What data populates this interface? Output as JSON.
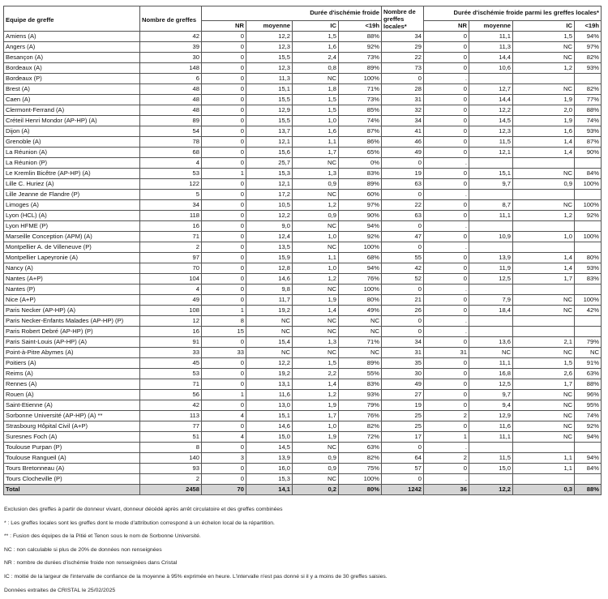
{
  "headers": {
    "team": "Equipe de greffe",
    "count": "Nombre de greffes",
    "group1": "Durée d'ischémie froide",
    "local_count": "Nombre de greffes locales*",
    "group2": "Durée d'ischémie froide parmi les greffes locales*",
    "sub": [
      "NR",
      "moyenne",
      "IC",
      "<19h"
    ]
  },
  "columns": [
    "Equipe de greffe",
    "Nombre de greffes",
    "NR",
    "moyenne",
    "IC",
    "<19h",
    "Nombre de greffes locales*",
    "NR",
    "moyenne",
    "IC",
    "<19h"
  ],
  "rows": [
    [
      "Amiens (A)",
      "42",
      "0",
      "12,2",
      "1,5",
      "88%",
      "34",
      "0",
      "11,1",
      "1,5",
      "94%"
    ],
    [
      "Angers (A)",
      "39",
      "0",
      "12,3",
      "1,6",
      "92%",
      "29",
      "0",
      "11,3",
      "NC",
      "97%"
    ],
    [
      "Besançon (A)",
      "30",
      "0",
      "15,5",
      "2,4",
      "73%",
      "22",
      "0",
      "14,4",
      "NC",
      "82%"
    ],
    [
      "Bordeaux (A)",
      "148",
      "0",
      "12,3",
      "0,8",
      "89%",
      "73",
      "0",
      "10,6",
      "1,2",
      "93%"
    ],
    [
      "Bordeaux (P)",
      "6",
      "0",
      "11,3",
      "NC",
      "100%",
      "0",
      ".",
      "",
      "",
      ""
    ],
    [
      "Brest (A)",
      "48",
      "0",
      "15,1",
      "1,8",
      "71%",
      "28",
      "0",
      "12,7",
      "NC",
      "82%"
    ],
    [
      "Caen (A)",
      "48",
      "0",
      "15,5",
      "1,5",
      "73%",
      "31",
      "0",
      "14,4",
      "1,9",
      "77%"
    ],
    [
      "Clermont-Ferrand (A)",
      "48",
      "0",
      "12,9",
      "1,5",
      "85%",
      "32",
      "0",
      "12,2",
      "2,0",
      "88%"
    ],
    [
      "Créteil Henri Mondor (AP-HP) (A)",
      "89",
      "0",
      "15,5",
      "1,0",
      "74%",
      "34",
      "0",
      "14,5",
      "1,9",
      "74%"
    ],
    [
      "Dijon (A)",
      "54",
      "0",
      "13,7",
      "1,6",
      "87%",
      "41",
      "0",
      "12,3",
      "1,6",
      "93%"
    ],
    [
      "Grenoble (A)",
      "78",
      "0",
      "12,1",
      "1,1",
      "86%",
      "46",
      "0",
      "11,5",
      "1,4",
      "87%"
    ],
    [
      "La Réunion (A)",
      "68",
      "0",
      "15,6",
      "1,7",
      "65%",
      "49",
      "0",
      "12,1",
      "1,4",
      "90%"
    ],
    [
      "La Réunion (P)",
      "4",
      "0",
      "25,7",
      "NC",
      "0%",
      "0",
      ".",
      "",
      "",
      ""
    ],
    [
      "Le Kremlin Bicêtre (AP-HP) (A)",
      "53",
      "1",
      "15,3",
      "1,3",
      "83%",
      "19",
      "0",
      "15,1",
      "NC",
      "84%"
    ],
    [
      "Lille C. Huriez (A)",
      "122",
      "0",
      "12,1",
      "0,9",
      "89%",
      "63",
      "0",
      "9,7",
      "0,9",
      "100%"
    ],
    [
      "Lille Jeanne de Flandre (P)",
      "5",
      "0",
      "17,2",
      "NC",
      "60%",
      "0",
      ".",
      "",
      "",
      ""
    ],
    [
      "Limoges (A)",
      "34",
      "0",
      "10,5",
      "1,2",
      "97%",
      "22",
      "0",
      "8,7",
      "NC",
      "100%"
    ],
    [
      "Lyon (HCL) (A)",
      "118",
      "0",
      "12,2",
      "0,9",
      "90%",
      "63",
      "0",
      "11,1",
      "1,2",
      "92%"
    ],
    [
      "Lyon HFME (P)",
      "16",
      "0",
      "9,0",
      "NC",
      "94%",
      "0",
      ".",
      "",
      "",
      ""
    ],
    [
      "Marseille Conception (APM) (A)",
      "71",
      "0",
      "12,4",
      "1,0",
      "92%",
      "47",
      "0",
      "10,9",
      "1,0",
      "100%"
    ],
    [
      "Montpellier A. de Villeneuve (P)",
      "2",
      "0",
      "13,5",
      "NC",
      "100%",
      "0",
      ".",
      "",
      "",
      ""
    ],
    [
      "Montpellier Lapeyronie (A)",
      "97",
      "0",
      "15,9",
      "1,1",
      "68%",
      "55",
      "0",
      "13,9",
      "1,4",
      "80%"
    ],
    [
      "Nancy (A)",
      "70",
      "0",
      "12,8",
      "1,0",
      "94%",
      "42",
      "0",
      "11,9",
      "1,4",
      "93%"
    ],
    [
      "Nantes (A+P)",
      "104",
      "0",
      "14,6",
      "1,2",
      "76%",
      "52",
      "0",
      "12,5",
      "1,7",
      "83%"
    ],
    [
      "Nantes (P)",
      "4",
      "0",
      "9,8",
      "NC",
      "100%",
      "0",
      ".",
      "",
      "",
      ""
    ],
    [
      "Nice (A+P)",
      "49",
      "0",
      "11,7",
      "1,9",
      "80%",
      "21",
      "0",
      "7,9",
      "NC",
      "100%"
    ],
    [
      "Paris Necker (AP-HP) (A)",
      "108",
      "1",
      "19,2",
      "1,4",
      "49%",
      "26",
      "0",
      "18,4",
      "NC",
      "42%"
    ],
    [
      "Paris Necker-Enfants Malades (AP-HP) (P)",
      "12",
      "8",
      "NC",
      "NC",
      "NC",
      "0",
      ".",
      "",
      "",
      ""
    ],
    [
      "Paris Robert Debré (AP-HP) (P)",
      "16",
      "15",
      "NC",
      "NC",
      "NC",
      "0",
      ".",
      "",
      "",
      ""
    ],
    [
      "Paris Saint-Louis (AP-HP) (A)",
      "91",
      "0",
      "15,4",
      "1,3",
      "71%",
      "34",
      "0",
      "13,6",
      "2,1",
      "79%"
    ],
    [
      "Point-à-Pitre Abymes (A)",
      "33",
      "33",
      "NC",
      "NC",
      "NC",
      "31",
      "31",
      "NC",
      "NC",
      "NC"
    ],
    [
      "Poitiers (A)",
      "45",
      "0",
      "12,2",
      "1,5",
      "89%",
      "35",
      "0",
      "11,1",
      "1,5",
      "91%"
    ],
    [
      "Reims (A)",
      "53",
      "0",
      "19,2",
      "2,2",
      "55%",
      "30",
      "0",
      "16,8",
      "2,6",
      "63%"
    ],
    [
      "Rennes (A)",
      "71",
      "0",
      "13,1",
      "1,4",
      "83%",
      "49",
      "0",
      "12,5",
      "1,7",
      "88%"
    ],
    [
      "Rouen (A)",
      "56",
      "1",
      "11,6",
      "1,2",
      "93%",
      "27",
      "0",
      "9,7",
      "NC",
      "96%"
    ],
    [
      "Saint-Etienne (A)",
      "42",
      "0",
      "13,0",
      "1,9",
      "79%",
      "19",
      "0",
      "9,4",
      "NC",
      "95%"
    ],
    [
      "Sorbonne Université (AP-HP) (A) **",
      "113",
      "4",
      "15,1",
      "1,7",
      "76%",
      "25",
      "2",
      "12,9",
      "NC",
      "74%"
    ],
    [
      "Strasbourg Hôpital Civil (A+P)",
      "77",
      "0",
      "14,6",
      "1,0",
      "82%",
      "25",
      "0",
      "11,6",
      "NC",
      "92%"
    ],
    [
      "Suresnes Foch (A)",
      "51",
      "4",
      "15,0",
      "1,9",
      "72%",
      "17",
      "1",
      "11,1",
      "NC",
      "94%"
    ],
    [
      "Toulouse Purpan (P)",
      "8",
      "0",
      "14,5",
      "NC",
      "63%",
      "0",
      ".",
      "",
      "",
      ""
    ],
    [
      "Toulouse Rangueil (A)",
      "140",
      "3",
      "13,9",
      "0,9",
      "82%",
      "64",
      "2",
      "11,5",
      "1,1",
      "94%"
    ],
    [
      "Tours Bretonneau (A)",
      "93",
      "0",
      "16,0",
      "0,9",
      "75%",
      "57",
      "0",
      "15,0",
      "1,1",
      "84%"
    ],
    [
      "Tours Clocheville (P)",
      "2",
      "0",
      "15,3",
      "NC",
      "100%",
      "0",
      ".",
      "",
      "",
      ""
    ]
  ],
  "total": [
    "Total",
    "2458",
    "70",
    "14,1",
    "0,2",
    "80%",
    "1242",
    "36",
    "12,2",
    "0,3",
    "88%"
  ],
  "notes": [
    "Exclusion des greffes à partir de donneur vivant, donneur décédé après arrêt circulatoire et des greffes combinées",
    "* : Les greffes locales sont les greffes dont le mode d'attribution correspond à un échelon local de la répartition.",
    "** : Fusion des équipes de la Pitié et Tenon sous le nom de Sorbonne Université.",
    "NC : non calculable si plus de 20% de données non renseignées",
    "NR : nombre  de durées d'ischémie froide non renseignées dans Cristal",
    "IC : moitié de la largeur de l'intervalle de confiance de la moyenne à 95% exprimée en heure. L'intervalle n'est pas donné si il y a moins de 30 greffes saisies.",
    "Données extraites de CRISTAL le 25/02/2025"
  ]
}
